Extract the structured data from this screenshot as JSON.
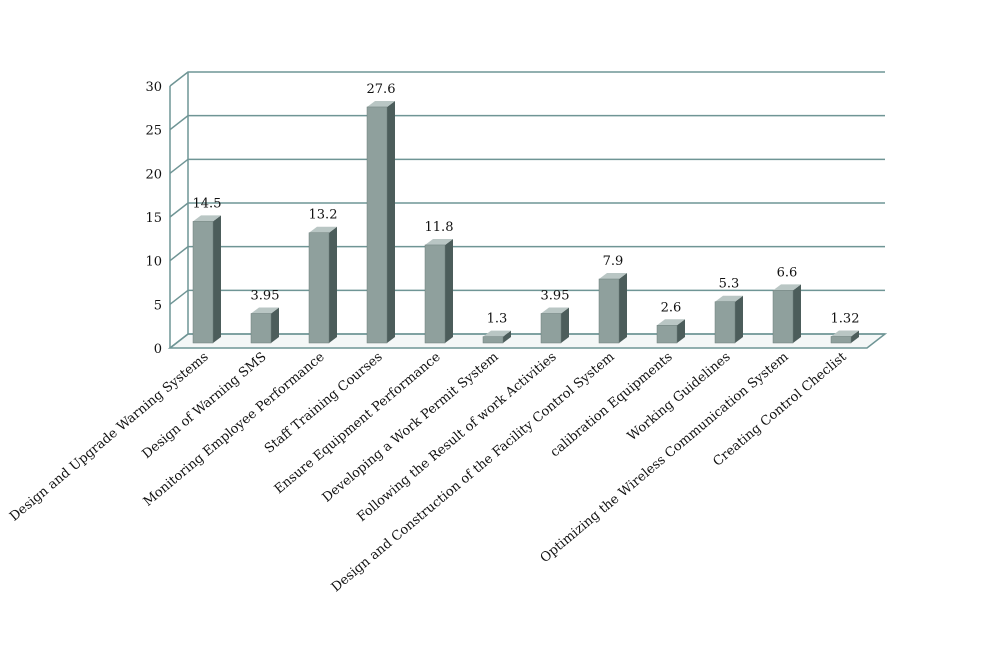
{
  "chart_data": {
    "type": "bar3d",
    "categories": [
      "Design and Upgrade Warning Systems",
      "Design of Warning SMS",
      "Monitoring Employee Performance",
      "Staff Training Courses",
      "Ensure Equipment Performance",
      "Developing a Work Permit System",
      "Following the Result of work Activities",
      "Design and Construction of the Facility Control System",
      "calibration Equipments",
      "Working Guidelines",
      "Optimizing the Wireless Communication System",
      "Creating Control Checlist"
    ],
    "values": [
      14.5,
      3.95,
      13.2,
      27.6,
      11.8,
      1.3,
      3.95,
      7.9,
      2.6,
      5.3,
      6.6,
      1.32
    ],
    "color": "#8fa09d",
    "ylim": [
      0,
      30
    ],
    "yticks": [
      0,
      5,
      10,
      15,
      20,
      25,
      30
    ],
    "grid": true
  }
}
